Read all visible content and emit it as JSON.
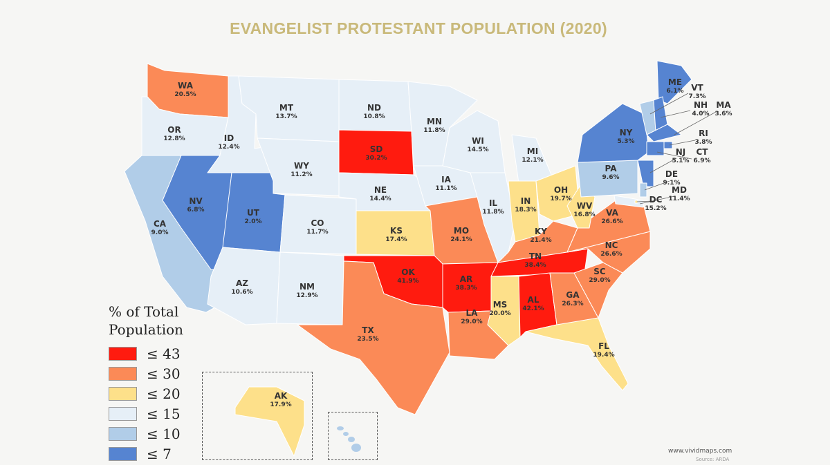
{
  "title": "EVANGELIST PROTESTANT POPULATION (2020)",
  "title_color": "#c9b97a",
  "legend": {
    "title_line1": "% of Total",
    "title_line2": "Population",
    "items": [
      {
        "label": "≤ 43",
        "color": "#ff1b0f"
      },
      {
        "label": "≤ 30",
        "color": "#fb8a57"
      },
      {
        "label": "≤ 20",
        "color": "#fde08a"
      },
      {
        "label": "≤ 15",
        "color": "#e6eff7"
      },
      {
        "label": "≤ 10",
        "color": "#b1cde8"
      },
      {
        "label": "≤ 7",
        "color": "#5684d1"
      }
    ]
  },
  "states": {
    "WA": {
      "abbr": "WA",
      "value": "20.5%"
    },
    "OR": {
      "abbr": "OR",
      "value": "12.8%"
    },
    "CA": {
      "abbr": "CA",
      "value": "9.0%"
    },
    "ID": {
      "abbr": "ID",
      "value": "12.4%"
    },
    "NV": {
      "abbr": "NV",
      "value": "6.8%"
    },
    "UT": {
      "abbr": "UT",
      "value": "2.0%"
    },
    "AZ": {
      "abbr": "AZ",
      "value": "10.6%"
    },
    "MT": {
      "abbr": "MT",
      "value": "13.7%"
    },
    "WY": {
      "abbr": "WY",
      "value": "11.2%"
    },
    "CO": {
      "abbr": "CO",
      "value": "11.7%"
    },
    "NM": {
      "abbr": "NM",
      "value": "12.9%"
    },
    "ND": {
      "abbr": "ND",
      "value": "10.8%"
    },
    "SD": {
      "abbr": "SD",
      "value": "30.2%"
    },
    "NE": {
      "abbr": "NE",
      "value": "14.4%"
    },
    "KS": {
      "abbr": "KS",
      "value": "17.4%"
    },
    "OK": {
      "abbr": "OK",
      "value": "41.9%"
    },
    "TX": {
      "abbr": "TX",
      "value": "23.5%"
    },
    "MN": {
      "abbr": "MN",
      "value": "11.8%"
    },
    "IA": {
      "abbr": "IA",
      "value": "11.1%"
    },
    "MO": {
      "abbr": "MO",
      "value": "24.1%"
    },
    "AR": {
      "abbr": "AR",
      "value": "38.3%"
    },
    "LA": {
      "abbr": "LA",
      "value": "29.0%"
    },
    "WI": {
      "abbr": "WI",
      "value": "14.5%"
    },
    "IL": {
      "abbr": "IL",
      "value": "11.8%"
    },
    "MI": {
      "abbr": "MI",
      "value": "12.1%"
    },
    "IN": {
      "abbr": "IN",
      "value": "18.3%"
    },
    "OH": {
      "abbr": "OH",
      "value": "19.7%"
    },
    "KY": {
      "abbr": "KY",
      "value": "21.4%"
    },
    "TN": {
      "abbr": "TN",
      "value": "38.4%"
    },
    "MS": {
      "abbr": "MS",
      "value": "20.0%"
    },
    "AL": {
      "abbr": "AL",
      "value": "42.1%"
    },
    "GA": {
      "abbr": "GA",
      "value": "26.3%"
    },
    "FL": {
      "abbr": "FL",
      "value": "19.4%"
    },
    "SC": {
      "abbr": "SC",
      "value": "29.0%"
    },
    "NC": {
      "abbr": "NC",
      "value": "26.6%"
    },
    "VA": {
      "abbr": "VA",
      "value": "26.6%"
    },
    "WV": {
      "abbr": "WV",
      "value": "16.8%"
    },
    "PA": {
      "abbr": "PA",
      "value": "9.6%"
    },
    "NY": {
      "abbr": "NY",
      "value": "5.3%"
    },
    "ME": {
      "abbr": "ME",
      "value": "6.1%"
    },
    "VT": {
      "abbr": "VT",
      "value": "7.3%"
    },
    "NH": {
      "abbr": "NH",
      "value": "4.0%"
    },
    "MA": {
      "abbr": "MA",
      "value": "3.6%"
    },
    "RI": {
      "abbr": "RI",
      "value": "3.8%"
    },
    "CT": {
      "abbr": "CT",
      "value": "6.9%"
    },
    "NJ": {
      "abbr": "NJ",
      "value": "5.1%"
    },
    "DE": {
      "abbr": "DE",
      "value": "9.1%"
    },
    "MD": {
      "abbr": "MD",
      "value": "11.4%"
    },
    "DC": {
      "abbr": "DC",
      "value": "15.2%"
    },
    "AK": {
      "abbr": "AK",
      "value": "17.9%"
    }
  },
  "credit": "www.vividmaps.com",
  "source": "Source: ARDA"
}
